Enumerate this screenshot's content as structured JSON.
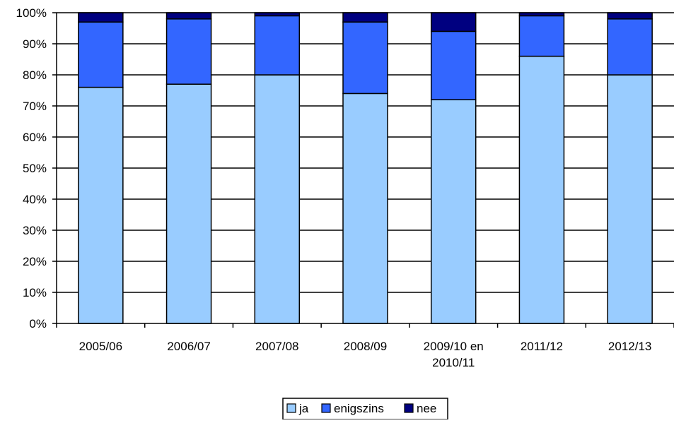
{
  "chart_data": {
    "type": "bar",
    "stacked": true,
    "categories": [
      "2005/06",
      "2006/07",
      "2007/08",
      "2008/09",
      "2009/10 en 2010/11",
      "2011/12",
      "2012/13"
    ],
    "category_label_lines": [
      [
        "2005/06"
      ],
      [
        "2006/07"
      ],
      [
        "2007/08"
      ],
      [
        "2008/09"
      ],
      [
        "2009/10 en",
        "2010/11"
      ],
      [
        "2011/12"
      ],
      [
        "2012/13"
      ]
    ],
    "series": [
      {
        "name": "ja",
        "values": [
          76,
          77,
          80,
          74,
          72,
          86,
          80
        ],
        "color": "#99ccff"
      },
      {
        "name": "enigszins",
        "values": [
          21,
          21,
          19,
          23,
          22,
          13,
          18
        ],
        "color": "#3366ff"
      },
      {
        "name": "nee",
        "values": [
          3,
          2,
          1,
          3,
          6,
          1,
          2
        ],
        "color": "#000080"
      }
    ],
    "y_ticks": [
      "0%",
      "10%",
      "20%",
      "30%",
      "40%",
      "50%",
      "60%",
      "70%",
      "80%",
      "90%",
      "100%"
    ],
    "ylim": [
      0,
      100
    ],
    "grid": true,
    "legend_position": "bottom"
  }
}
